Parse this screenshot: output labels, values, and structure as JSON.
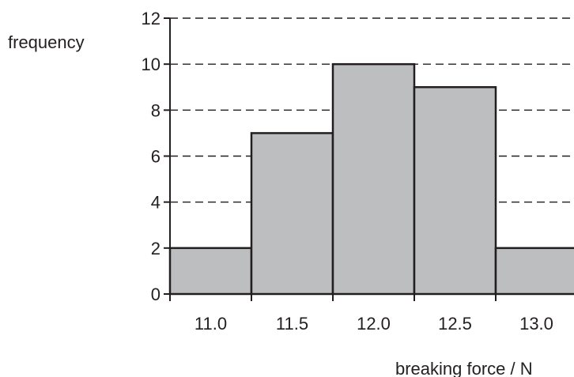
{
  "chart_data": {
    "type": "bar",
    "histogram": true,
    "categories": [
      "11.0",
      "11.5",
      "12.0",
      "12.5",
      "13.0"
    ],
    "values": [
      2,
      7,
      10,
      9,
      2
    ],
    "xlabel": "breaking force / N",
    "ylabel": "frequency",
    "ylim": [
      0,
      12
    ],
    "yticks": [
      0,
      2,
      4,
      6,
      8,
      10,
      12
    ],
    "grid": "horizontal dashed",
    "colors": {
      "bar_fill": "#bcbec0",
      "stroke": "#231f20"
    }
  }
}
